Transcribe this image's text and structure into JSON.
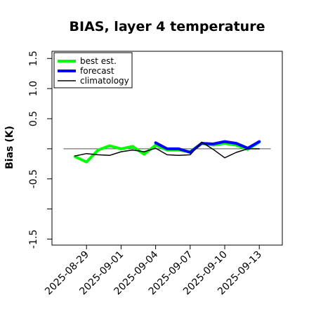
{
  "chart_data": {
    "type": "line",
    "title": "BIAS, layer 4 temperature",
    "xlabel": "",
    "ylabel": "Bias (K)",
    "ylim": [
      -1.6,
      1.62
    ],
    "yticks": [
      "-1.5",
      "-1.0",
      "-0.5",
      "0.0",
      "0.5",
      "1.0",
      "1.5"
    ],
    "labeled_yticks": [
      "-1.5",
      "-0.5",
      "0.5",
      "1.0",
      "1.5"
    ],
    "xlim": [
      "2025-08-26",
      "2025-09-15"
    ],
    "xticks": [
      "2025-08-29",
      "2025-09-01",
      "2025-09-04",
      "2025-09-07",
      "2025-09-10",
      "2025-09-13"
    ],
    "highlighted_xtick": "2025-09-04",
    "highlight_color": "#228b22",
    "grid": false,
    "legend_position": "top-left",
    "reference_line": 0,
    "series": [
      {
        "name": "best est.",
        "color": "#00ff00",
        "x": [
          "2025-08-28",
          "2025-08-29",
          "2025-08-30",
          "2025-08-31",
          "2025-09-01",
          "2025-09-02",
          "2025-09-03",
          "2025-09-04",
          "2025-09-05",
          "2025-09-06",
          "2025-09-07",
          "2025-09-08",
          "2025-09-09",
          "2025-09-10",
          "2025-09-11",
          "2025-09-12",
          "2025-09-13"
        ],
        "values": [
          -0.13,
          -0.22,
          -0.02,
          0.05,
          0.0,
          0.04,
          -0.09,
          0.06,
          -0.02,
          -0.02,
          -0.05,
          0.09,
          0.06,
          0.09,
          0.06,
          -0.01,
          0.11
        ]
      },
      {
        "name": "forecast",
        "color": "#0000ff",
        "x": [
          "2025-09-04",
          "2025-09-05",
          "2025-09-06",
          "2025-09-07",
          "2025-09-08",
          "2025-09-09",
          "2025-09-10",
          "2025-09-11",
          "2025-09-12",
          "2025-09-13"
        ],
        "values": [
          0.1,
          0.0,
          0.0,
          -0.06,
          0.09,
          0.08,
          0.12,
          0.09,
          0.01,
          0.12
        ]
      },
      {
        "name": "climatology",
        "color": "#000000",
        "x": [
          "2025-08-28",
          "2025-08-29",
          "2025-08-30",
          "2025-08-31",
          "2025-09-01",
          "2025-09-02",
          "2025-09-03",
          "2025-09-04",
          "2025-09-05",
          "2025-09-06",
          "2025-09-07",
          "2025-09-08",
          "2025-09-09",
          "2025-09-10",
          "2025-09-11",
          "2025-09-12",
          "2025-09-13"
        ],
        "values": [
          -0.12,
          -0.08,
          -0.1,
          -0.11,
          -0.05,
          -0.02,
          -0.05,
          0.01,
          -0.1,
          -0.11,
          -0.1,
          0.11,
          -0.01,
          -0.15,
          -0.06,
          0.0,
          0.0
        ]
      }
    ]
  }
}
